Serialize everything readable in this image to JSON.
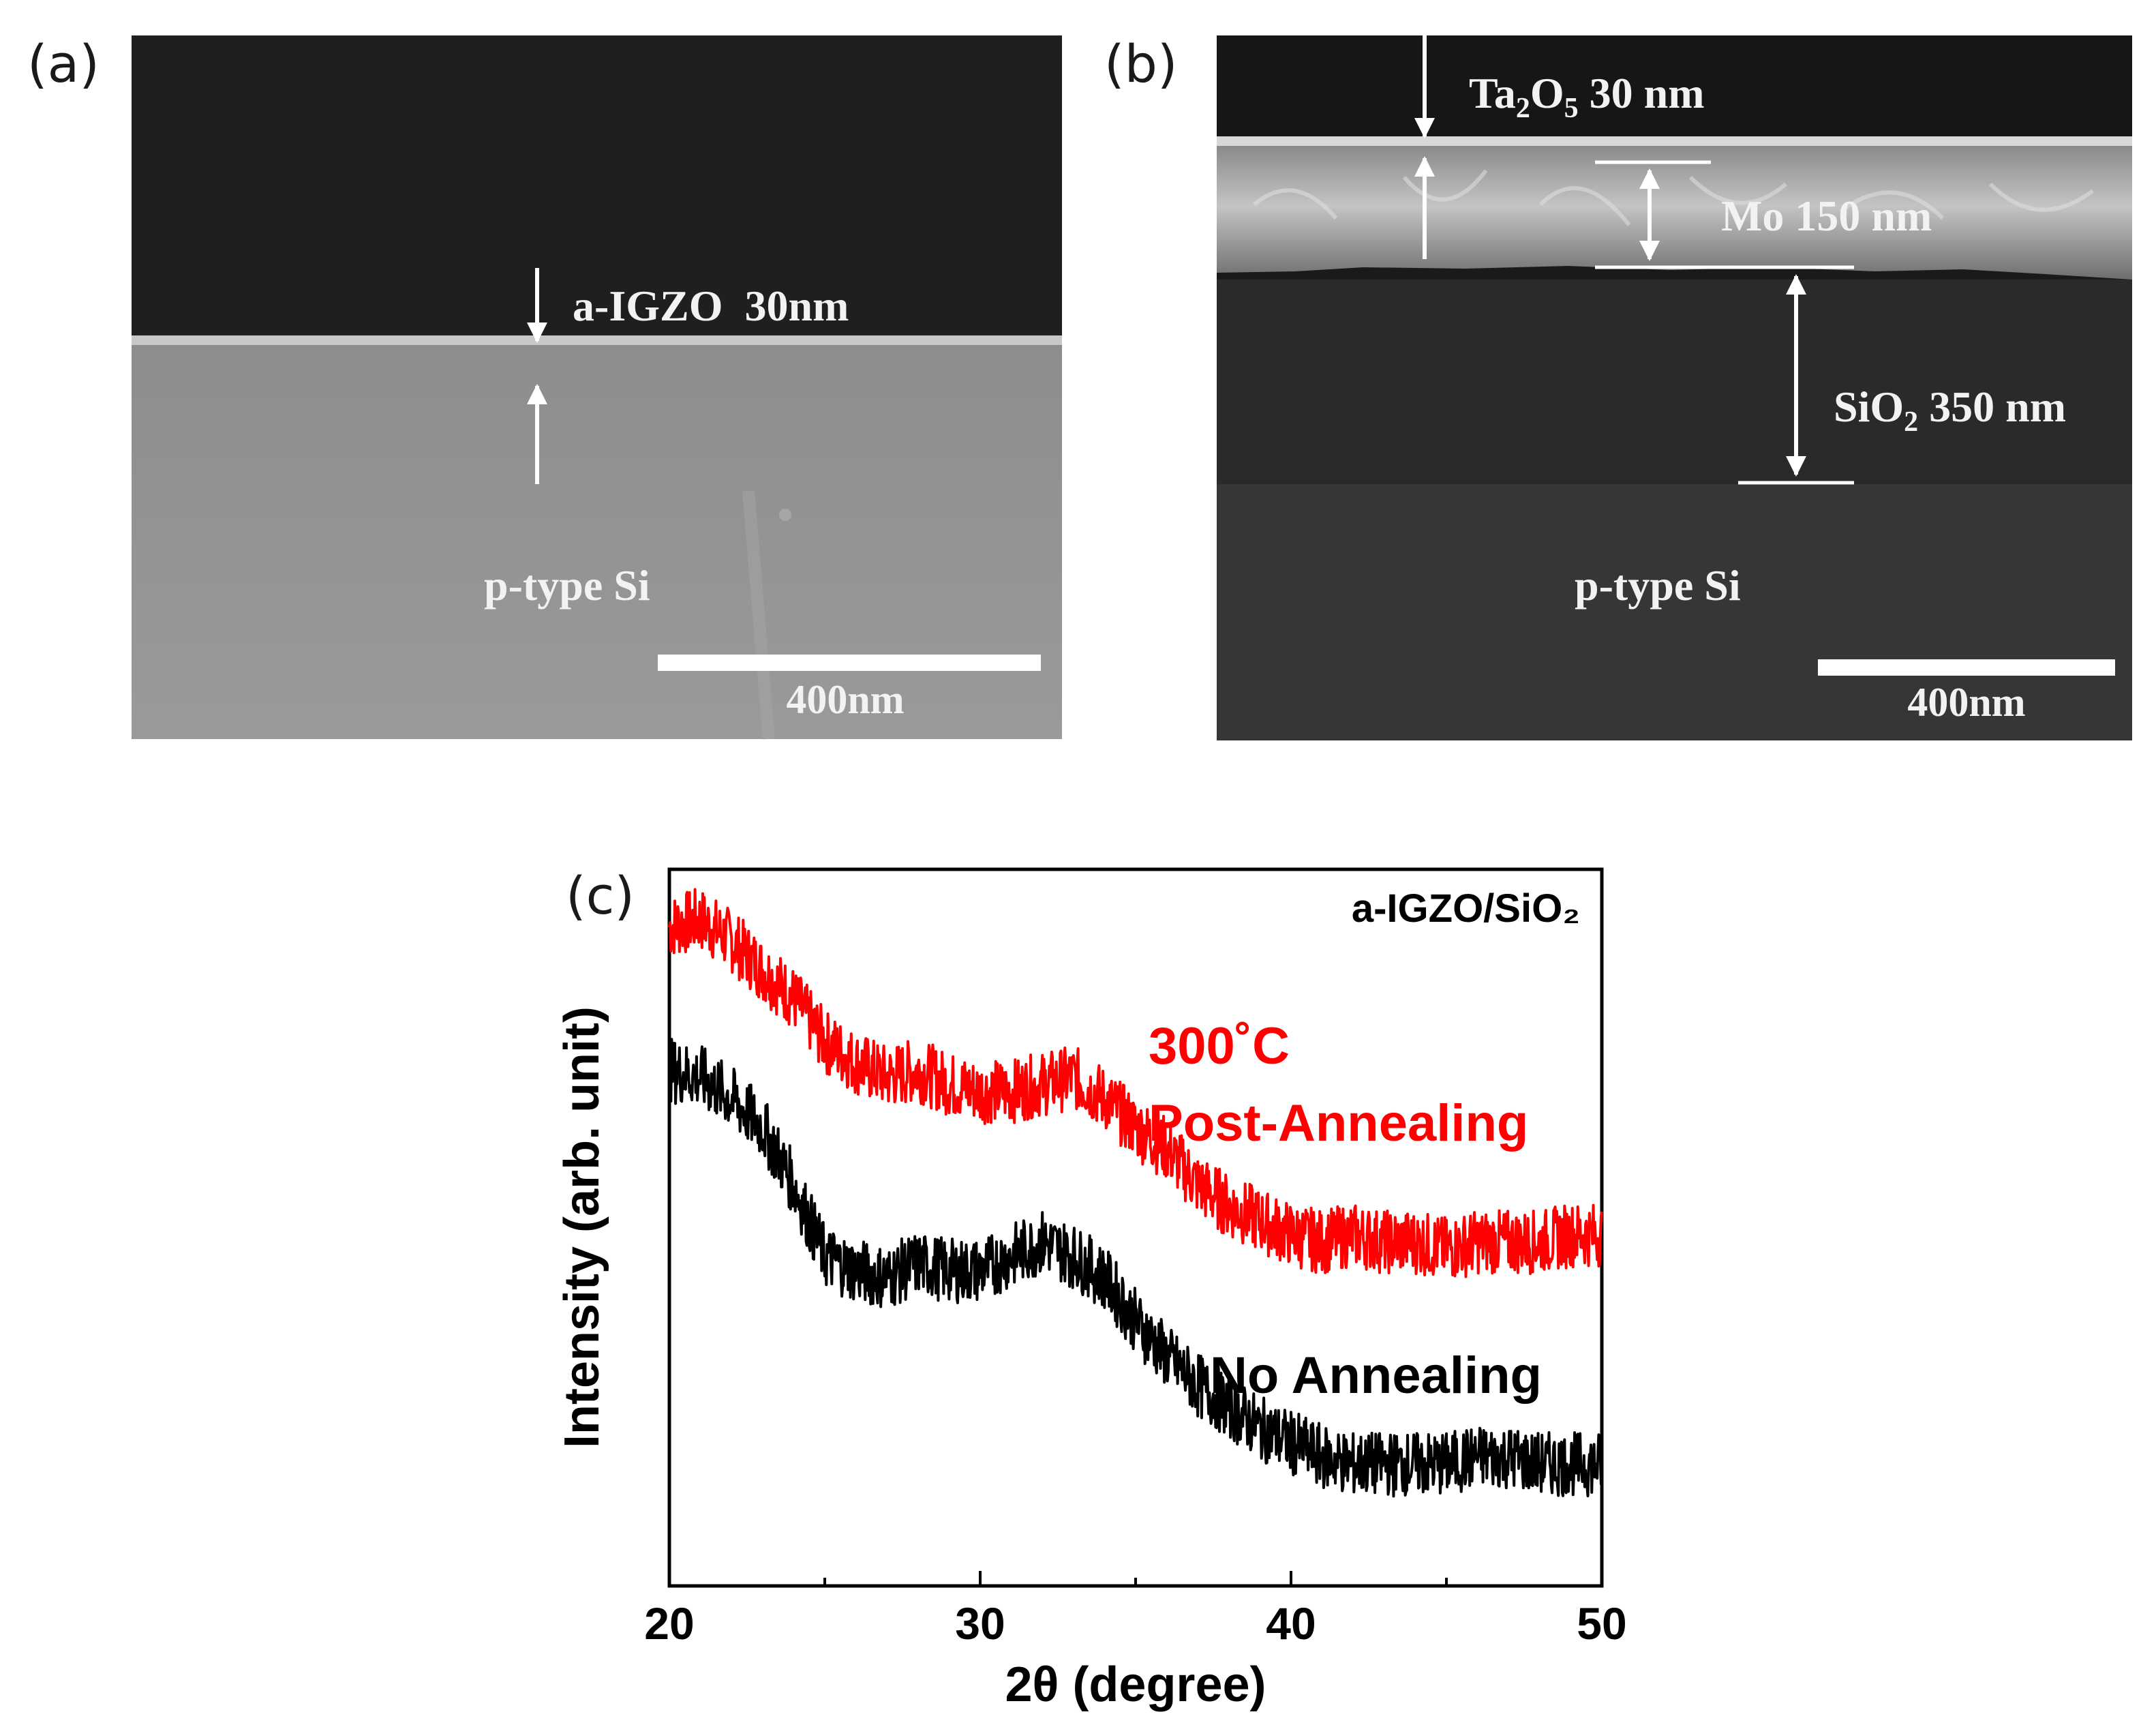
{
  "panel_a": {
    "label": "(a)",
    "layer_label": "a-IGZO  30nm",
    "substrate_label": "p-type Si",
    "scale_bar_label": "400nm"
  },
  "panel_b": {
    "label": "(b)",
    "ta2o5": {
      "base": "Ta",
      "sub1": "2",
      "mid": "O",
      "sub2": "5",
      "rest": " 30 nm"
    },
    "mo_label": "Mo 150 nm",
    "sio2": {
      "base": "SiO",
      "sub": "2",
      "rest": " 350 nm"
    },
    "substrate_label": "p-type Si",
    "scale_bar_label": "400nm"
  },
  "panel_c": {
    "label": "(c)"
  },
  "chart_data": {
    "type": "line",
    "title": "a-IGZO/SiO₂",
    "xlabel": "2θ (degree)",
    "ylabel": "Intensity (arb. unit)",
    "xlim": [
      20,
      50
    ],
    "ylim": [
      0,
      10
    ],
    "xticks": [
      20,
      30,
      40,
      50
    ],
    "series": [
      {
        "name": "300˚C Post-Annealing",
        "legend_line1": "300˚C",
        "legend_line2": "Post-Annealing",
        "color": "#ff0000",
        "noise": 0.45,
        "x": [
          20,
          21,
          22,
          23,
          24,
          25,
          26,
          27,
          28,
          29,
          30,
          31,
          32,
          33,
          34,
          35,
          36,
          37,
          38,
          39,
          40,
          41,
          42,
          43,
          44,
          45,
          46,
          47,
          48,
          49,
          50
        ],
        "y": [
          9.2,
          9.3,
          9.0,
          8.6,
          8.2,
          7.6,
          7.3,
          7.1,
          7.2,
          7.0,
          6.9,
          6.9,
          7.0,
          7.1,
          6.8,
          6.4,
          6.1,
          5.6,
          5.3,
          5.1,
          4.9,
          4.8,
          4.9,
          4.8,
          4.8,
          4.7,
          4.8,
          4.8,
          4.8,
          4.9,
          4.9
        ]
      },
      {
        "name": "No Annealing",
        "legend_line1": "No Annealing",
        "color": "#000000",
        "noise": 0.45,
        "x": [
          20,
          21,
          22,
          23,
          24,
          25,
          26,
          27,
          28,
          29,
          30,
          31,
          32,
          33,
          34,
          35,
          36,
          37,
          38,
          39,
          40,
          41,
          42,
          43,
          44,
          45,
          46,
          47,
          48,
          49,
          50
        ],
        "y": [
          7.2,
          7.1,
          6.8,
          6.4,
          5.6,
          4.6,
          4.4,
          4.3,
          4.5,
          4.4,
          4.4,
          4.6,
          4.8,
          4.6,
          4.3,
          3.7,
          3.2,
          2.8,
          2.5,
          2.2,
          2.0,
          1.8,
          1.7,
          1.7,
          1.7,
          1.7,
          1.8,
          1.8,
          1.7,
          1.7,
          1.7
        ]
      }
    ]
  }
}
